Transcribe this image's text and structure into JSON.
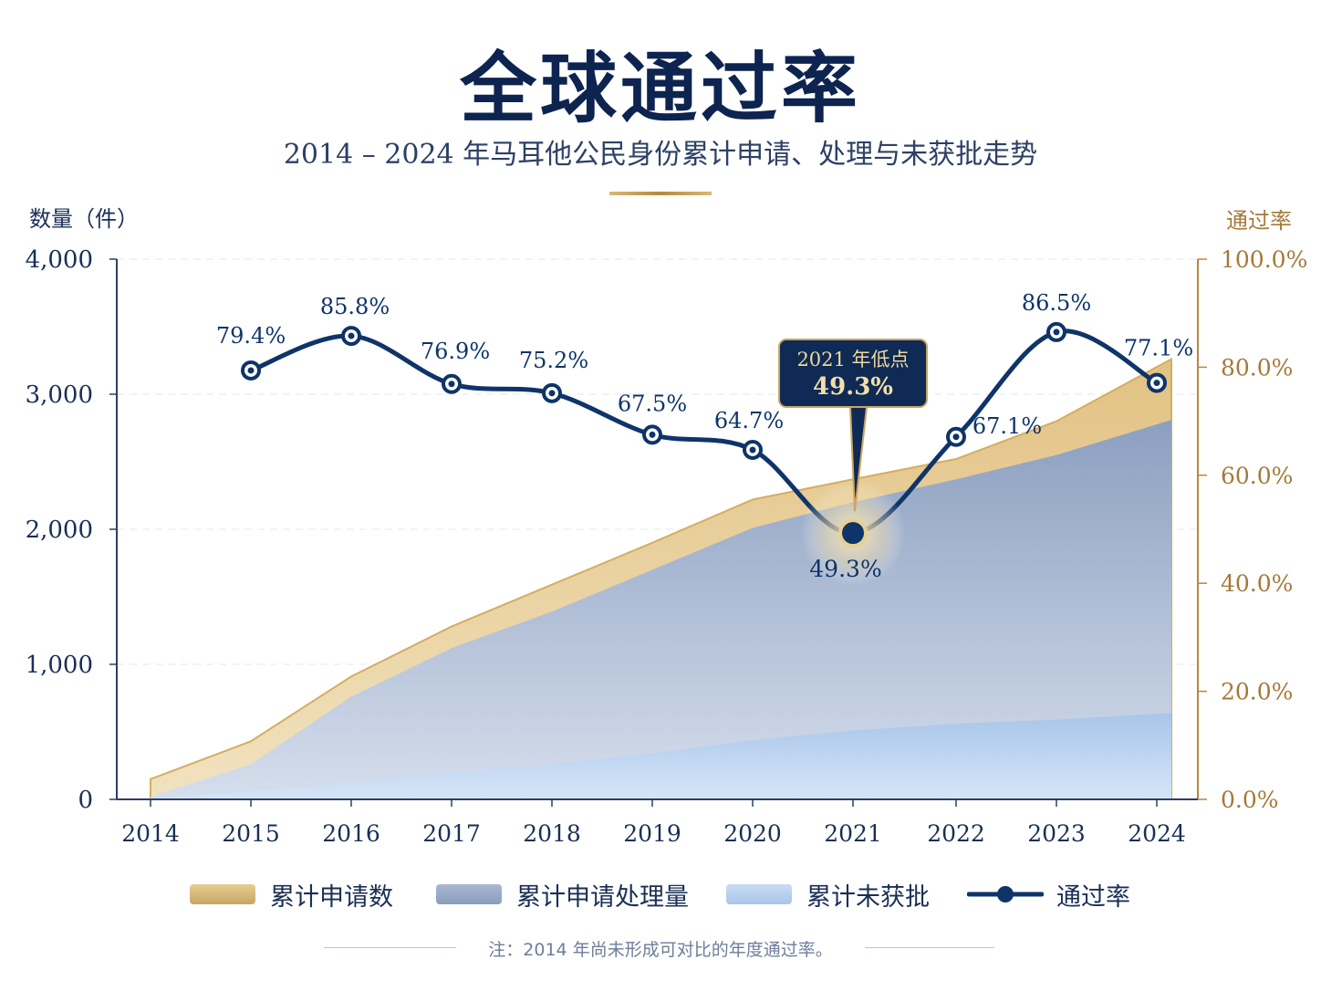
{
  "header": {
    "title": "全球通过率",
    "subtitle": "2014 – 2024 年马耳他公民身份累计申请、处理与未获批走势"
  },
  "axes": {
    "left_title": "数量（件）",
    "right_title": "通过率"
  },
  "chart_data": {
    "type": "area",
    "x": [
      "2014",
      "2015",
      "2016",
      "2017",
      "2018",
      "2019",
      "2020",
      "2021",
      "2022",
      "2023",
      "2024"
    ],
    "y_left_ticks": [
      "0",
      "1,000",
      "2,000",
      "3,000",
      "4,000"
    ],
    "y_right_ticks": [
      "0.0%",
      "20.0%",
      "40.0%",
      "60.0%",
      "80.0%",
      "100.0%"
    ],
    "ylim_left": [
      0,
      4000
    ],
    "ylim_right": [
      0,
      100
    ],
    "series": [
      {
        "name": "累计申请数",
        "axis": "left",
        "values": [
          150,
          430,
          910,
          1280,
          1590,
          1900,
          2220,
          2370,
          2520,
          2800,
          3260
        ]
      },
      {
        "name": "累计申请处理量",
        "axis": "left",
        "values": [
          20,
          260,
          760,
          1120,
          1390,
          1700,
          2010,
          2200,
          2370,
          2550,
          2810
        ]
      },
      {
        "name": "累计未获批",
        "axis": "left",
        "values": [
          5,
          60,
          120,
          200,
          260,
          340,
          440,
          510,
          560,
          590,
          640
        ]
      },
      {
        "name": "通过率",
        "axis": "right",
        "values": [
          null,
          79.4,
          85.8,
          76.9,
          75.2,
          67.5,
          64.7,
          49.3,
          67.1,
          86.5,
          77.1
        ]
      }
    ],
    "rate_labels": [
      "79.4%",
      "85.8%",
      "76.9%",
      "75.2%",
      "67.5%",
      "64.7%",
      "49.3%",
      "67.1%",
      "86.5%",
      "77.1%"
    ],
    "callout": {
      "line1": "2021 年低点",
      "line2": "49.3%"
    },
    "grid": true,
    "legend_position": "bottom"
  },
  "legend": {
    "items": [
      "累计申请数",
      "累计申请处理量",
      "累计未获批",
      "通过率"
    ]
  },
  "note": "注：2014 年尚未形成可对比的年度通过率。",
  "colors": {
    "navy": "#0e3469",
    "gold": "#b8873e",
    "applications": "#d8b56f",
    "processed": "#8fa2c3",
    "pending": "#b4cdec"
  }
}
